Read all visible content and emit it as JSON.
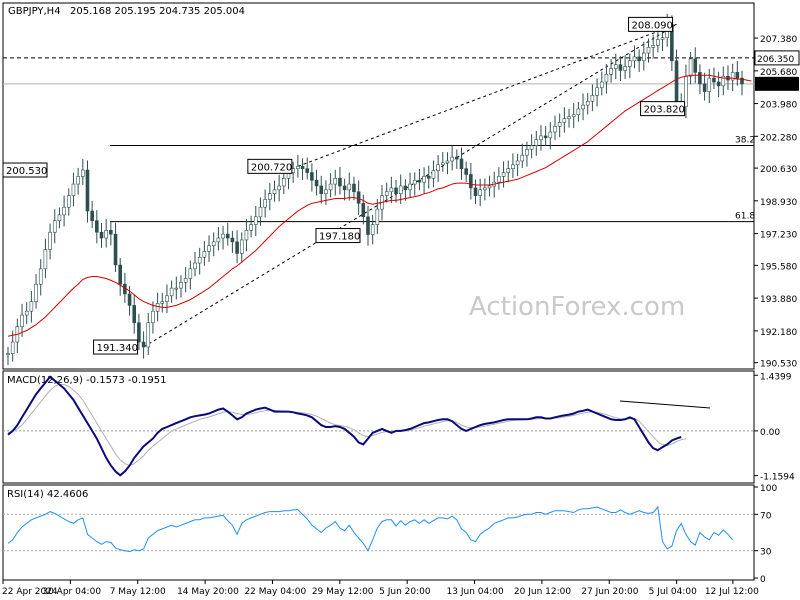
{
  "header": {
    "symbol": "GBPJPY,H4",
    "ohlc": "205.168 205.195 204.735 205.004"
  },
  "watermark": "ActionForex.com",
  "colors": {
    "candle": "#2f4f4f",
    "ma": "#d40000",
    "macd_line": "#0a0a7a",
    "signal_line": "#b0b0b0",
    "rsi_line": "#1e90ff",
    "grid": "#000000",
    "trendline": "#000000"
  },
  "chart_data": [
    {
      "type": "candlestick",
      "title": "GBPJPY,H4",
      "y_tick_labels": [
        "207.380",
        "205.680",
        "203.980",
        "202.280",
        "200.630",
        "198.930",
        "197.230",
        "195.580",
        "193.880",
        "192.180",
        "190.530"
      ],
      "y_range": [
        190.2,
        209.2
      ],
      "current_price": "205.004",
      "key_level": "206.350",
      "series": [
        {
          "kind": "candles",
          "close": [
            191.0,
            191.6,
            192.4,
            193.0,
            193.2,
            193.7,
            194.6,
            195.4,
            196.4,
            197.3,
            197.9,
            198.2,
            198.6,
            199.2,
            199.8,
            200.2,
            200.53,
            198.4,
            197.9,
            197.3,
            197.0,
            197.4,
            197.2,
            195.6,
            194.6,
            194.1,
            193.5,
            192.6,
            191.6,
            191.34,
            192.6,
            193.2,
            193.6,
            193.7,
            194.0,
            194.4,
            194.4,
            194.7,
            194.9,
            195.4,
            195.7,
            196.0,
            196.3,
            196.6,
            196.8,
            197.0,
            197.2,
            197.0,
            196.8,
            196.2,
            196.9,
            197.4,
            197.7,
            198.1,
            198.6,
            199.0,
            199.3,
            199.5,
            199.7,
            200.1,
            200.4,
            200.6,
            200.72,
            200.6,
            200.4,
            200.0,
            199.7,
            199.3,
            199.5,
            199.8,
            200.1,
            199.7,
            199.5,
            199.8,
            199.4,
            198.8,
            198.1,
            197.18,
            197.7,
            198.5,
            199.2,
            199.4,
            199.6,
            199.3,
            199.7,
            199.5,
            199.8,
            200.0,
            199.9,
            200.2,
            200.1,
            200.5,
            200.8,
            200.9,
            201.0,
            201.2,
            201.1,
            200.6,
            200.3,
            199.6,
            199.2,
            199.5,
            199.6,
            199.7,
            199.9,
            200.2,
            200.4,
            200.6,
            200.8,
            201.0,
            201.3,
            201.6,
            201.8,
            202.1,
            202.3,
            202.2,
            202.5,
            202.8,
            203.0,
            203.2,
            203.3,
            203.4,
            203.7,
            203.9,
            204.1,
            204.4,
            204.8,
            205.1,
            205.5,
            205.8,
            206.0,
            205.7,
            205.9,
            206.2,
            206.4,
            206.2,
            206.6,
            206.9,
            207.0,
            207.3,
            207.4,
            208.09,
            206.2,
            204.1,
            203.82,
            205.4,
            206.3,
            205.6,
            205.0,
            204.6,
            205.3,
            205.1,
            204.9,
            205.4,
            205.2,
            205.6,
            205.3,
            205.0
          ]
        },
        {
          "kind": "line",
          "name": "",
          "values": [
            191.9,
            191.95,
            192.0,
            192.1,
            192.2,
            192.35,
            192.5,
            192.7,
            192.9,
            193.15,
            193.4,
            193.65,
            193.9,
            194.15,
            194.4,
            194.6,
            194.85,
            194.95,
            195.0,
            195.0,
            194.95,
            194.9,
            194.8,
            194.7,
            194.55,
            194.4,
            194.25,
            194.05,
            193.85,
            193.7,
            193.6,
            193.5,
            193.45,
            193.4,
            193.4,
            193.45,
            193.5,
            193.6,
            193.7,
            193.8,
            193.95,
            194.1,
            194.25,
            194.4,
            194.6,
            194.8,
            195.0,
            195.2,
            195.4,
            195.55,
            195.75,
            195.95,
            196.15,
            196.35,
            196.6,
            196.85,
            197.1,
            197.35,
            197.6,
            197.8,
            198.0,
            198.2,
            198.4,
            198.55,
            198.7,
            198.8,
            198.85,
            198.9,
            198.95,
            199.0,
            199.05,
            199.05,
            199.05,
            199.1,
            199.1,
            199.05,
            198.95,
            198.8,
            198.75,
            198.8,
            198.85,
            198.9,
            198.95,
            198.95,
            199.0,
            199.05,
            199.1,
            199.15,
            199.2,
            199.3,
            199.35,
            199.45,
            199.55,
            199.6,
            199.7,
            199.8,
            199.85,
            199.85,
            199.85,
            199.8,
            199.75,
            199.75,
            199.75,
            199.75,
            199.8,
            199.85,
            199.9,
            199.95,
            200.0,
            200.05,
            200.15,
            200.25,
            200.35,
            200.45,
            200.55,
            200.65,
            200.8,
            200.95,
            201.1,
            201.25,
            201.4,
            201.55,
            201.7,
            201.85,
            202.0,
            202.2,
            202.4,
            202.6,
            202.8,
            203.0,
            203.2,
            203.4,
            203.6,
            203.75,
            203.9,
            204.05,
            204.2,
            204.35,
            204.5,
            204.65,
            204.8,
            204.95,
            205.1,
            205.25,
            205.35,
            205.4,
            205.45,
            205.45,
            205.45,
            205.45,
            205.45,
            205.4,
            205.35,
            205.3,
            205.3,
            205.3,
            205.25,
            205.25,
            205.2,
            205.15
          ]
        }
      ],
      "annotations": [
        {
          "text": "200.530",
          "x": 16,
          "y": 200.53
        },
        {
          "text": "191.340",
          "x": 29,
          "y": 191.34
        },
        {
          "text": "200.720",
          "x": 62,
          "y": 200.72
        },
        {
          "text": "197.180",
          "x": 77,
          "y": 197.18
        },
        {
          "text": "208.090",
          "x": 143,
          "y": 208.09
        },
        {
          "text": "203.820",
          "x": 146,
          "y": 203.82
        }
      ],
      "horizontal_levels": [
        {
          "value": 206.35,
          "label": "206.350",
          "style": "dashed"
        },
        {
          "value": 201.8,
          "label": "38.2",
          "style": "solid"
        },
        {
          "value": 197.85,
          "label": "61.8",
          "style": "solid"
        }
      ],
      "trend_channel": [
        {
          "from": [
            29,
            191.34
          ],
          "to": [
            143,
            208.09
          ]
        },
        {
          "from": [
            62,
            200.72
          ],
          "to": [
            143,
            208.09
          ]
        }
      ]
    },
    {
      "type": "line",
      "title": "MACD(12,26,9) -0.1573 -0.1951",
      "y_tick_labels": [
        "1.4399",
        "0.00",
        "-1.1594"
      ],
      "y_range": [
        -1.35,
        1.55
      ],
      "series": [
        {
          "name": "",
          "values": [
            -0.1,
            0.0,
            0.15,
            0.35,
            0.55,
            0.75,
            0.95,
            1.1,
            1.25,
            1.4,
            1.3,
            1.2,
            1.1,
            0.95,
            0.8,
            0.6,
            0.4,
            0.2,
            0.0,
            -0.2,
            -0.45,
            -0.7,
            -0.9,
            -1.05,
            -1.15,
            -1.05,
            -0.9,
            -0.7,
            -0.55,
            -0.4,
            -0.3,
            -0.2,
            -0.05,
            0.05,
            0.1,
            0.15,
            0.2,
            0.25,
            0.3,
            0.35,
            0.38,
            0.4,
            0.42,
            0.45,
            0.5,
            0.55,
            0.58,
            0.5,
            0.4,
            0.3,
            0.35,
            0.45,
            0.5,
            0.55,
            0.58,
            0.6,
            0.55,
            0.5,
            0.5,
            0.5,
            0.5,
            0.48,
            0.45,
            0.43,
            0.4,
            0.35,
            0.25,
            0.15,
            0.1,
            0.1,
            0.12,
            0.1,
            0.05,
            -0.05,
            -0.15,
            -0.3,
            -0.35,
            -0.2,
            -0.05,
            0.0,
            0.05,
            0.0,
            -0.05,
            0.0,
            0.0,
            0.02,
            0.05,
            0.1,
            0.15,
            0.2,
            0.22,
            0.25,
            0.28,
            0.3,
            0.3,
            0.25,
            0.15,
            0.05,
            0.0,
            0.05,
            0.1,
            0.15,
            0.18,
            0.2,
            0.22,
            0.25,
            0.28,
            0.3,
            0.3,
            0.3,
            0.3,
            0.3,
            0.32,
            0.35,
            0.35,
            0.32,
            0.32,
            0.35,
            0.38,
            0.4,
            0.42,
            0.45,
            0.5,
            0.52,
            0.55,
            0.5,
            0.45,
            0.4,
            0.35,
            0.3,
            0.28,
            0.28,
            0.3,
            0.35,
            0.3,
            0.1,
            -0.1,
            -0.3,
            -0.45,
            -0.5,
            -0.42,
            -0.35,
            -0.25,
            -0.2,
            -0.16
          ]
        },
        {
          "name": "",
          "values": [
            -0.05,
            0.0,
            0.05,
            0.15,
            0.3,
            0.45,
            0.6,
            0.75,
            0.9,
            1.05,
            1.15,
            1.2,
            1.2,
            1.15,
            1.05,
            0.95,
            0.8,
            0.6,
            0.4,
            0.2,
            0.0,
            -0.2,
            -0.4,
            -0.6,
            -0.75,
            -0.85,
            -0.9,
            -0.85,
            -0.75,
            -0.65,
            -0.5,
            -0.4,
            -0.3,
            -0.2,
            -0.1,
            0.0,
            0.05,
            0.1,
            0.15,
            0.2,
            0.25,
            0.3,
            0.33,
            0.36,
            0.4,
            0.44,
            0.48,
            0.5,
            0.48,
            0.45,
            0.42,
            0.42,
            0.44,
            0.47,
            0.5,
            0.52,
            0.54,
            0.53,
            0.52,
            0.51,
            0.5,
            0.49,
            0.48,
            0.47,
            0.45,
            0.42,
            0.38,
            0.32,
            0.26,
            0.2,
            0.16,
            0.14,
            0.12,
            0.08,
            0.03,
            -0.05,
            -0.12,
            -0.15,
            -0.12,
            -0.08,
            -0.04,
            -0.02,
            -0.02,
            -0.02,
            -0.01,
            0.0,
            0.02,
            0.05,
            0.08,
            0.12,
            0.15,
            0.18,
            0.21,
            0.24,
            0.26,
            0.26,
            0.22,
            0.15,
            0.1,
            0.08,
            0.08,
            0.1,
            0.12,
            0.15,
            0.17,
            0.2,
            0.22,
            0.25,
            0.27,
            0.28,
            0.29,
            0.3,
            0.3,
            0.31,
            0.32,
            0.32,
            0.32,
            0.33,
            0.34,
            0.36,
            0.38,
            0.4,
            0.43,
            0.46,
            0.48,
            0.5,
            0.48,
            0.45,
            0.42,
            0.38,
            0.34,
            0.31,
            0.3,
            0.31,
            0.32,
            0.25,
            0.12,
            -0.02,
            -0.15,
            -0.28,
            -0.36,
            -0.38,
            -0.34,
            -0.28,
            -0.23,
            -0.2
          ]
        }
      ]
    },
    {
      "type": "line",
      "title": "RSI(14) 42.4606",
      "y_tick_labels": [
        "100",
        "70",
        "30",
        "0"
      ],
      "y_range": [
        0,
        100
      ],
      "levels": [
        70,
        30
      ],
      "series": [
        {
          "name": "",
          "values": [
            38,
            42,
            50,
            56,
            60,
            64,
            66,
            68,
            70,
            73,
            71,
            68,
            65,
            62,
            60,
            64,
            66,
            48,
            44,
            40,
            37,
            40,
            39,
            33,
            31,
            30,
            29,
            31,
            30,
            32,
            44,
            48,
            52,
            54,
            56,
            58,
            56,
            58,
            60,
            62,
            64,
            64,
            66,
            66,
            67,
            68,
            69,
            63,
            58,
            48,
            60,
            64,
            66,
            68,
            70,
            72,
            73,
            73,
            73,
            74,
            74,
            75,
            75,
            70,
            65,
            58,
            54,
            50,
            55,
            58,
            62,
            55,
            52,
            58,
            50,
            44,
            38,
            30,
            42,
            55,
            62,
            64,
            64,
            57,
            63,
            58,
            62,
            64,
            60,
            64,
            60,
            63,
            66,
            66,
            65,
            68,
            64,
            54,
            50,
            42,
            40,
            48,
            52,
            55,
            60,
            62,
            64,
            66,
            66,
            67,
            69,
            70,
            70,
            72,
            72,
            70,
            72,
            74,
            74,
            74,
            73,
            72,
            75,
            76,
            76,
            77,
            78,
            76,
            74,
            72,
            72,
            75,
            72,
            70,
            72,
            74,
            72,
            71,
            72,
            78,
            40,
            32,
            35,
            52,
            60,
            48,
            40,
            36,
            50,
            45,
            42,
            50,
            47,
            53,
            48,
            42
          ]
        }
      ]
    }
  ],
  "x_axis_labels": [
    "22 Apr 2024",
    "30 Apr 04:00",
    "7 May 12:00",
    "14 May 20:00",
    "22 May 04:00",
    "29 May 12:00",
    "5 Jun 20:00",
    "13 Jun 04:00",
    "20 Jun 12:00",
    "27 Jun 20:00",
    "5 Jul 04:00",
    "12 Jul 12:00"
  ]
}
